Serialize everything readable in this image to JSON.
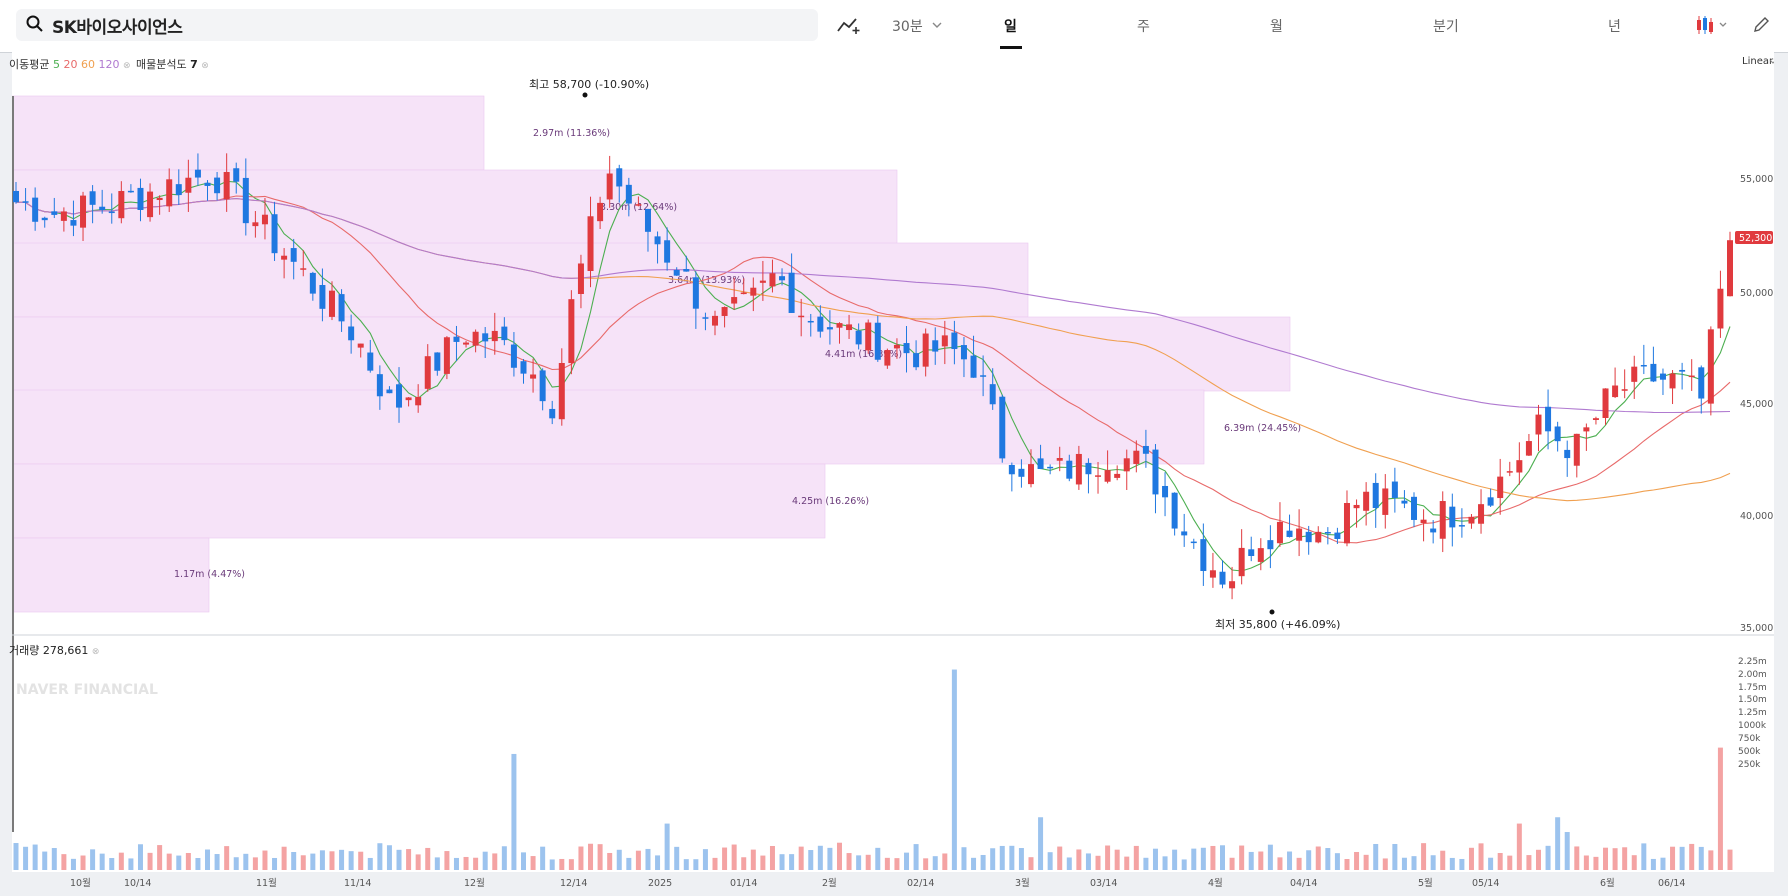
{
  "header": {
    "stock_name": "SK바이오사이언스",
    "interval": "30분",
    "periods": [
      "일",
      "주",
      "월",
      "분기",
      "년"
    ],
    "active_period": "일"
  },
  "indicators": {
    "ma_label": "이동평균",
    "ma_periods": [
      "5",
      "20",
      "60",
      "120"
    ],
    "ma_colors": [
      "#4caf50",
      "#e86a6a",
      "#f0a050",
      "#b07ad0"
    ],
    "volume_profile_label": "매물분석도",
    "volume_profile_value": "7",
    "scale": "Linear"
  },
  "annotations": {
    "high": "최고 58,700 (-10.90%)",
    "low": "최저 35,800 (+46.09%)",
    "current_price": "52,300"
  },
  "volume_profile": [
    {
      "label": "2.97m (11.36%)"
    },
    {
      "label": "3.30m (12.64%)"
    },
    {
      "label": "3.64m (13.93%)"
    },
    {
      "label": "4.41m (16.89%)"
    },
    {
      "label": "6.39m (24.45%)"
    },
    {
      "label": "4.25m (16.26%)"
    },
    {
      "label": "1.17m (4.47%)"
    }
  ],
  "price_axis": [
    "55,000",
    "50,000",
    "45,000",
    "40,000",
    "35,000"
  ],
  "volume": {
    "label": "거래량",
    "value": "278,661",
    "axis": [
      "2.25m",
      "2.00m",
      "1.75m",
      "1.50m",
      "1.25m",
      "1000k",
      "750k",
      "500k",
      "250k"
    ]
  },
  "date_axis": [
    "10월",
    "10/14",
    "11월",
    "11/14",
    "12월",
    "12/14",
    "2025",
    "01/14",
    "2월",
    "02/14",
    "3월",
    "03/14",
    "4월",
    "04/14",
    "5월",
    "05/14",
    "6월",
    "06/14"
  ],
  "watermark": "NAVER FINANCIAL",
  "colors": {
    "up": "#e03a3e",
    "down": "#1f78e0",
    "profile": "#f6e3f8"
  }
}
